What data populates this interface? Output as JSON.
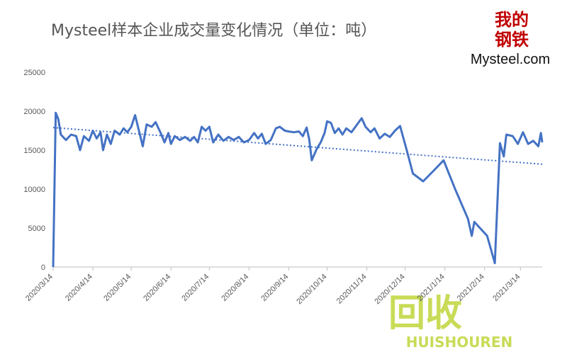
{
  "chart_data": {
    "type": "line",
    "title": "Mysteel样本企业成交量变化情况（单位：吨）",
    "logo": {
      "top": "我的",
      "bottom": "钢铁",
      "brand": "Mysteel.com"
    },
    "watermark": {
      "mark": "回收",
      "text": "HUISHOUREN"
    },
    "x": [
      "2020/3/14",
      "2020/3/16",
      "2020/3/18",
      "2020/3/20",
      "2020/3/24",
      "2020/3/28",
      "2020/4/1",
      "2020/4/4",
      "2020/4/7",
      "2020/4/11",
      "2020/4/14",
      "2020/4/17",
      "2020/4/20",
      "2020/4/22",
      "2020/4/25",
      "2020/4/28",
      "2020/5/1",
      "2020/5/5",
      "2020/5/8",
      "2020/5/11",
      "2020/5/14",
      "2020/5/17",
      "2020/5/20",
      "2020/5/23",
      "2020/5/26",
      "2020/5/30",
      "2020/6/2",
      "2020/6/6",
      "2020/6/9",
      "2020/6/12",
      "2020/6/14",
      "2020/6/17",
      "2020/6/21",
      "2020/6/25",
      "2020/6/29",
      "2020/7/2",
      "2020/7/5",
      "2020/7/8",
      "2020/7/11",
      "2020/7/14",
      "2020/7/17",
      "2020/7/21",
      "2020/7/25",
      "2020/7/29",
      "2020/8/2",
      "2020/8/6",
      "2020/8/10",
      "2020/8/14",
      "2020/8/18",
      "2020/8/21",
      "2020/8/24",
      "2020/8/27",
      "2020/8/31",
      "2020/9/4",
      "2020/9/7",
      "2020/9/11",
      "2020/9/14",
      "2020/9/18",
      "2020/9/22",
      "2020/9/25",
      "2020/9/28",
      "2020/9/30",
      "2020/10/2",
      "2020/10/6",
      "2020/10/9",
      "2020/10/12",
      "2020/10/14",
      "2020/10/17",
      "2020/10/20",
      "2020/10/23",
      "2020/10/26",
      "2020/10/29",
      "2020/11/2",
      "2020/11/6",
      "2020/11/10",
      "2020/11/13",
      "2020/11/17",
      "2020/11/20",
      "2020/11/24",
      "2020/11/28",
      "2020/12/2",
      "2020/12/6",
      "2020/12/10",
      "2020/12/16",
      "2020/12/20",
      "2020/12/28",
      "2021/1/6",
      "2021/1/13",
      "2021/1/22",
      "2021/2/1",
      "2021/2/4",
      "2021/2/6",
      "2021/2/16",
      "2021/2/22",
      "2021/2/26",
      "2021/3/1",
      "2021/3/3",
      "2021/3/8",
      "2021/3/12",
      "2021/3/16",
      "2021/3/20",
      "2021/3/24",
      "2021/3/28",
      "2021/3/30",
      "2021/3/31"
    ],
    "series": [
      {
        "color": "#4472c4",
        "values": [
          0,
          19800,
          19000,
          17000,
          16300,
          17000,
          16800,
          15000,
          16800,
          16200,
          17500,
          16500,
          17300,
          15000,
          17000,
          15800,
          17500,
          17000,
          17800,
          17300,
          18000,
          19500,
          17500,
          15500,
          18300,
          18000,
          18600,
          17200,
          16000,
          17200,
          15800,
          16800,
          16300,
          16700,
          16200,
          16700,
          16000,
          18000,
          17500,
          18000,
          16000,
          17000,
          16200,
          16700,
          16300,
          16700,
          16000,
          16300,
          17200,
          16500,
          17100,
          15800,
          16300,
          17800,
          18000,
          17500,
          17400,
          17300,
          17400,
          16800,
          17900,
          16400,
          13700,
          15200,
          16000,
          17200,
          18700,
          18500,
          17200,
          17800,
          17000,
          17800,
          17300,
          18200,
          19100,
          18000,
          17300,
          17800,
          16500,
          17100,
          16700,
          17500,
          18100,
          14500,
          12000,
          11000,
          12500,
          13700,
          10000,
          6200,
          4000,
          5800,
          4000,
          500,
          15900,
          14200,
          17000,
          16800,
          15800,
          17300,
          15800,
          16200,
          15500,
          17200,
          16000
        ]
      }
    ],
    "trendline": {
      "x": [
        "2020/3/14",
        "2021/3/31"
      ],
      "values": [
        17900,
        13200
      ],
      "color": "#4472c4"
    },
    "xlim": [
      "2020/3/14",
      "2021/3/31"
    ],
    "xticks": [
      "2020/3/14",
      "2020/4/14",
      "2020/5/14",
      "2020/6/14",
      "2020/7/14",
      "2020/8/14",
      "2020/9/14",
      "2020/10/14",
      "2020/11/14",
      "2020/12/14",
      "2021/1/14",
      "2021/2/14",
      "2021/3/14"
    ],
    "ylim": [
      0,
      25000
    ],
    "yticks": [
      0,
      5000,
      10000,
      15000,
      20000,
      25000
    ],
    "grid": false
  }
}
